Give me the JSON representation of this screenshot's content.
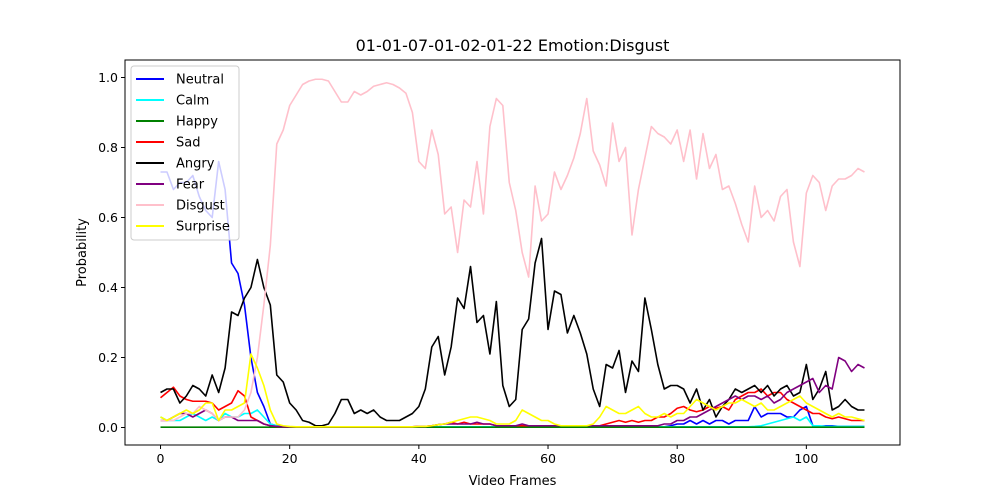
{
  "chart_data": {
    "type": "line",
    "title": "01-01-07-01-02-01-22 Emotion:Disgust",
    "xlabel": "Video Frames",
    "ylabel": "Probability",
    "xlim": [
      -5.5,
      114.5
    ],
    "ylim": [
      -0.05,
      1.05
    ],
    "xticks": [
      0,
      20,
      40,
      60,
      80,
      100
    ],
    "yticks": [
      "0.0",
      "0.2",
      "0.4",
      "0.6",
      "0.8",
      "1.0"
    ],
    "legend_position": "top-left",
    "x_start": 0,
    "series": [
      {
        "name": "Neutral",
        "color": "#0000ff",
        "values": [
          0.73,
          0.73,
          0.68,
          0.7,
          0.7,
          0.72,
          0.66,
          0.62,
          0.6,
          0.76,
          0.68,
          0.47,
          0.44,
          0.35,
          0.2,
          0.1,
          0.06,
          0.01,
          0.005,
          0.003,
          0.002,
          0.002,
          0.002,
          0.002,
          0.002,
          0.002,
          0.002,
          0.002,
          0.002,
          0.002,
          0.002,
          0.002,
          0.002,
          0.002,
          0.002,
          0.002,
          0.002,
          0.002,
          0.002,
          0.002,
          0.002,
          0.002,
          0.002,
          0.002,
          0.002,
          0.002,
          0.002,
          0.002,
          0.002,
          0.002,
          0.002,
          0.002,
          0.002,
          0.002,
          0.002,
          0.002,
          0.002,
          0.002,
          0.002,
          0.002,
          0.002,
          0.002,
          0.002,
          0.002,
          0.002,
          0.002,
          0.002,
          0.002,
          0.002,
          0.002,
          0.002,
          0.002,
          0.002,
          0.002,
          0.002,
          0.002,
          0.002,
          0.002,
          0.002,
          0.005,
          0.01,
          0.01,
          0.02,
          0.01,
          0.02,
          0.01,
          0.02,
          0.02,
          0.01,
          0.02,
          0.02,
          0.02,
          0.06,
          0.03,
          0.04,
          0.04,
          0.04,
          0.03,
          0.03,
          0.05,
          0.06,
          0.005,
          0.003,
          0.005,
          0.005,
          0.003,
          0.003,
          0.003,
          0.003,
          0.003
        ]
      },
      {
        "name": "Calm",
        "color": "#00ffff",
        "values": [
          0.03,
          0.02,
          0.02,
          0.02,
          0.03,
          0.04,
          0.03,
          0.02,
          0.03,
          0.02,
          0.04,
          0.03,
          0.03,
          0.04,
          0.04,
          0.05,
          0.03,
          0.01,
          0.005,
          0.003,
          0.002,
          0.002,
          0.002,
          0.002,
          0.002,
          0.002,
          0.002,
          0.002,
          0.002,
          0.002,
          0.002,
          0.002,
          0.002,
          0.002,
          0.002,
          0.002,
          0.002,
          0.002,
          0.002,
          0.002,
          0.002,
          0.002,
          0.002,
          0.002,
          0.002,
          0.002,
          0.002,
          0.002,
          0.002,
          0.002,
          0.002,
          0.002,
          0.002,
          0.002,
          0.002,
          0.002,
          0.002,
          0.002,
          0.002,
          0.002,
          0.002,
          0.002,
          0.002,
          0.002,
          0.002,
          0.002,
          0.002,
          0.002,
          0.002,
          0.002,
          0.002,
          0.002,
          0.002,
          0.002,
          0.002,
          0.002,
          0.002,
          0.002,
          0.002,
          0.002,
          0.002,
          0.002,
          0.002,
          0.002,
          0.002,
          0.002,
          0.002,
          0.002,
          0.002,
          0.002,
          0.002,
          0.002,
          0.003,
          0.005,
          0.01,
          0.015,
          0.02,
          0.025,
          0.03,
          0.02,
          0.03,
          0.005,
          0.005,
          0.003,
          0.003,
          0.003,
          0.003,
          0.003,
          0.003,
          0.003
        ]
      },
      {
        "name": "Happy",
        "color": "#008000",
        "values": [
          0.001,
          0.001,
          0.001,
          0.001,
          0.001,
          0.001,
          0.001,
          0.001,
          0.001,
          0.001,
          0.001,
          0.001,
          0.001,
          0.001,
          0.001,
          0.001,
          0.001,
          0.001,
          0.001,
          0.001,
          0.001,
          0.001,
          0.001,
          0.001,
          0.001,
          0.001,
          0.001,
          0.001,
          0.001,
          0.001,
          0.001,
          0.001,
          0.001,
          0.001,
          0.001,
          0.001,
          0.001,
          0.001,
          0.001,
          0.001,
          0.001,
          0.001,
          0.001,
          0.001,
          0.001,
          0.001,
          0.001,
          0.001,
          0.001,
          0.001,
          0.001,
          0.001,
          0.001,
          0.001,
          0.001,
          0.001,
          0.001,
          0.001,
          0.001,
          0.001,
          0.001,
          0.001,
          0.001,
          0.001,
          0.001,
          0.001,
          0.001,
          0.001,
          0.001,
          0.001,
          0.001,
          0.001,
          0.001,
          0.001,
          0.001,
          0.001,
          0.001,
          0.001,
          0.001,
          0.001,
          0.001,
          0.001,
          0.001,
          0.001,
          0.001,
          0.001,
          0.001,
          0.001,
          0.001,
          0.001,
          0.001,
          0.001,
          0.001,
          0.001,
          0.001,
          0.001,
          0.001,
          0.001,
          0.001,
          0.001,
          0.001,
          0.001,
          0.001,
          0.001,
          0.001,
          0.001,
          0.001,
          0.001,
          0.001,
          0.001
        ]
      },
      {
        "name": "Sad",
        "color": "#ff0000",
        "values": [
          0.085,
          0.1,
          0.115,
          0.09,
          0.08,
          0.075,
          0.075,
          0.075,
          0.07,
          0.05,
          0.06,
          0.07,
          0.105,
          0.09,
          0.03,
          0.02,
          0.01,
          0.005,
          0.003,
          0.002,
          0.002,
          0.002,
          0.002,
          0.002,
          0.002,
          0.002,
          0.002,
          0.002,
          0.002,
          0.002,
          0.002,
          0.002,
          0.002,
          0.002,
          0.002,
          0.002,
          0.002,
          0.002,
          0.002,
          0.002,
          0.003,
          0.003,
          0.005,
          0.008,
          0.01,
          0.015,
          0.01,
          0.015,
          0.01,
          0.01,
          0.01,
          0.01,
          0.005,
          0.005,
          0.005,
          0.005,
          0.005,
          0.005,
          0.005,
          0.005,
          0.005,
          0.005,
          0.005,
          0.005,
          0.005,
          0.005,
          0.005,
          0.005,
          0.005,
          0.01,
          0.015,
          0.02,
          0.015,
          0.02,
          0.015,
          0.02,
          0.02,
          0.03,
          0.03,
          0.04,
          0.055,
          0.06,
          0.05,
          0.045,
          0.05,
          0.06,
          0.055,
          0.06,
          0.05,
          0.08,
          0.09,
          0.1,
          0.1,
          0.11,
          0.09,
          0.1,
          0.1,
          0.08,
          0.07,
          0.06,
          0.05,
          0.04,
          0.04,
          0.03,
          0.025,
          0.03,
          0.025,
          0.02,
          0.02,
          0.02
        ]
      },
      {
        "name": "Angry",
        "color": "#000000",
        "values": [
          0.1,
          0.11,
          0.11,
          0.07,
          0.09,
          0.12,
          0.11,
          0.09,
          0.15,
          0.1,
          0.17,
          0.33,
          0.32,
          0.37,
          0.4,
          0.48,
          0.4,
          0.35,
          0.15,
          0.13,
          0.07,
          0.05,
          0.02,
          0.015,
          0.005,
          0.005,
          0.01,
          0.04,
          0.08,
          0.08,
          0.04,
          0.05,
          0.04,
          0.05,
          0.03,
          0.02,
          0.02,
          0.02,
          0.03,
          0.04,
          0.06,
          0.11,
          0.23,
          0.26,
          0.15,
          0.23,
          0.37,
          0.34,
          0.46,
          0.3,
          0.32,
          0.21,
          0.36,
          0.12,
          0.06,
          0.08,
          0.28,
          0.31,
          0.47,
          0.54,
          0.28,
          0.39,
          0.38,
          0.27,
          0.32,
          0.27,
          0.21,
          0.11,
          0.06,
          0.18,
          0.17,
          0.22,
          0.1,
          0.19,
          0.16,
          0.37,
          0.28,
          0.18,
          0.11,
          0.12,
          0.12,
          0.11,
          0.07,
          0.11,
          0.05,
          0.08,
          0.03,
          0.06,
          0.08,
          0.11,
          0.1,
          0.11,
          0.12,
          0.1,
          0.12,
          0.09,
          0.11,
          0.12,
          0.09,
          0.1,
          0.18,
          0.08,
          0.11,
          0.16,
          0.05,
          0.06,
          0.08,
          0.06,
          0.05,
          0.05
        ]
      },
      {
        "name": "Fear",
        "color": "#800080",
        "values": [
          0.02,
          0.02,
          0.03,
          0.04,
          0.04,
          0.03,
          0.04,
          0.05,
          0.04,
          0.02,
          0.03,
          0.03,
          0.02,
          0.02,
          0.02,
          0.02,
          0.01,
          0.005,
          0.003,
          0.002,
          0.002,
          0.002,
          0.002,
          0.002,
          0.002,
          0.002,
          0.002,
          0.002,
          0.002,
          0.002,
          0.002,
          0.002,
          0.002,
          0.002,
          0.002,
          0.002,
          0.002,
          0.002,
          0.002,
          0.002,
          0.003,
          0.003,
          0.005,
          0.008,
          0.01,
          0.01,
          0.01,
          0.01,
          0.01,
          0.015,
          0.01,
          0.01,
          0.005,
          0.005,
          0.005,
          0.005,
          0.01,
          0.005,
          0.005,
          0.005,
          0.005,
          0.005,
          0.005,
          0.005,
          0.005,
          0.005,
          0.005,
          0.005,
          0.005,
          0.005,
          0.005,
          0.005,
          0.005,
          0.005,
          0.005,
          0.005,
          0.005,
          0.005,
          0.01,
          0.01,
          0.02,
          0.02,
          0.03,
          0.03,
          0.04,
          0.05,
          0.06,
          0.07,
          0.08,
          0.09,
          0.08,
          0.09,
          0.09,
          0.08,
          0.09,
          0.07,
          0.08,
          0.1,
          0.11,
          0.12,
          0.13,
          0.14,
          0.1,
          0.12,
          0.11,
          0.2,
          0.19,
          0.16,
          0.18,
          0.17
        ]
      },
      {
        "name": "Disgust",
        "color": "#ffc0cb",
        "values": [
          0.02,
          0.02,
          0.02,
          0.03,
          0.04,
          0.04,
          0.06,
          0.05,
          0.04,
          0.02,
          0.03,
          0.03,
          0.03,
          0.05,
          0.1,
          0.2,
          0.35,
          0.52,
          0.81,
          0.85,
          0.92,
          0.95,
          0.98,
          0.99,
          0.995,
          0.995,
          0.99,
          0.96,
          0.93,
          0.93,
          0.96,
          0.95,
          0.96,
          0.975,
          0.98,
          0.985,
          0.98,
          0.97,
          0.955,
          0.9,
          0.76,
          0.74,
          0.85,
          0.78,
          0.61,
          0.63,
          0.5,
          0.65,
          0.63,
          0.76,
          0.61,
          0.86,
          0.94,
          0.92,
          0.7,
          0.62,
          0.5,
          0.43,
          0.69,
          0.59,
          0.61,
          0.73,
          0.68,
          0.72,
          0.77,
          0.84,
          0.94,
          0.79,
          0.75,
          0.69,
          0.87,
          0.76,
          0.8,
          0.55,
          0.68,
          0.77,
          0.86,
          0.84,
          0.83,
          0.81,
          0.85,
          0.76,
          0.85,
          0.71,
          0.84,
          0.74,
          0.78,
          0.68,
          0.69,
          0.64,
          0.58,
          0.53,
          0.69,
          0.6,
          0.62,
          0.59,
          0.66,
          0.68,
          0.53,
          0.46,
          0.67,
          0.72,
          0.7,
          0.62,
          0.69,
          0.71,
          0.71,
          0.72,
          0.74,
          0.73
        ]
      },
      {
        "name": "Surprise",
        "color": "#ffff00",
        "values": [
          0.03,
          0.02,
          0.03,
          0.04,
          0.05,
          0.04,
          0.05,
          0.07,
          0.07,
          0.02,
          0.05,
          0.05,
          0.06,
          0.07,
          0.21,
          0.17,
          0.12,
          0.05,
          0.01,
          0.005,
          0.003,
          0.002,
          0.002,
          0.002,
          0.002,
          0.002,
          0.002,
          0.002,
          0.002,
          0.002,
          0.002,
          0.002,
          0.002,
          0.002,
          0.002,
          0.002,
          0.002,
          0.002,
          0.002,
          0.002,
          0.003,
          0.003,
          0.005,
          0.008,
          0.01,
          0.015,
          0.02,
          0.025,
          0.03,
          0.03,
          0.025,
          0.02,
          0.01,
          0.01,
          0.01,
          0.02,
          0.05,
          0.04,
          0.03,
          0.02,
          0.02,
          0.01,
          0.005,
          0.005,
          0.005,
          0.005,
          0.005,
          0.01,
          0.03,
          0.06,
          0.05,
          0.04,
          0.04,
          0.05,
          0.06,
          0.04,
          0.03,
          0.03,
          0.04,
          0.03,
          0.04,
          0.04,
          0.06,
          0.08,
          0.07,
          0.06,
          0.05,
          0.06,
          0.07,
          0.07,
          0.08,
          0.07,
          0.06,
          0.07,
          0.05,
          0.05,
          0.06,
          0.07,
          0.08,
          0.09,
          0.07,
          0.06,
          0.05,
          0.04,
          0.03,
          0.04,
          0.03,
          0.03,
          0.025,
          0.02
        ]
      }
    ]
  }
}
